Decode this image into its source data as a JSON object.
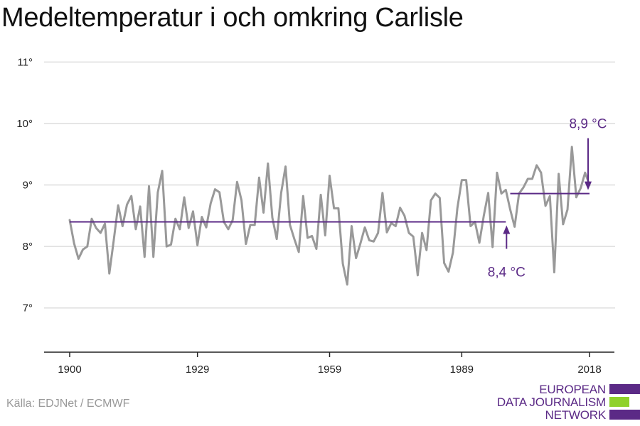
{
  "title": "Medeltemperatur i och omkring Carlisle",
  "source": "Källa: EDJNet / ECMWF",
  "logo": {
    "line1": "EUROPEAN",
    "line2": "DATA JOURNALISM",
    "line3": "NETWORK",
    "colors": [
      "#5b2a86",
      "#8fd12b",
      "#5b2a86"
    ]
  },
  "colors": {
    "series": "#999999",
    "average": "#5b2a86",
    "grid": "#dddddd",
    "axis": "#222222"
  },
  "chart_data": {
    "type": "line",
    "title": "Medeltemperatur i och omkring Carlisle",
    "xlabel": "",
    "ylabel": "",
    "xlim": [
      1900,
      2018
    ],
    "ylim": [
      6.5,
      11.2
    ],
    "x_ticks": [
      1900,
      1929,
      1959,
      1989,
      2018
    ],
    "x_tick_labels": [
      "1900",
      "1929",
      "1959",
      "1989",
      "2018"
    ],
    "y_ticks": [
      7,
      8,
      9,
      10,
      11
    ],
    "y_tick_labels": [
      "7°",
      "8°",
      "9°",
      "10°",
      "11°"
    ],
    "grid": true,
    "series": [
      {
        "x_start": 1900,
        "values": [
          8.43,
          8.05,
          7.8,
          7.95,
          8.0,
          8.45,
          8.3,
          8.22,
          8.37,
          7.56,
          8.1,
          8.67,
          8.33,
          8.68,
          8.82,
          8.28,
          8.65,
          7.83,
          8.98,
          7.83,
          8.88,
          9.23,
          8.0,
          8.03,
          8.45,
          8.28,
          8.8,
          8.3,
          8.57,
          8.02,
          8.48,
          8.31,
          8.7,
          8.93,
          8.88,
          8.4,
          8.28,
          8.43,
          9.05,
          8.75,
          8.04,
          8.35,
          8.35,
          9.12,
          8.55,
          9.35,
          8.47,
          8.12,
          8.87,
          9.3,
          8.35,
          8.12,
          7.91,
          8.82,
          8.14,
          8.17,
          7.96,
          8.84,
          8.18,
          9.15,
          8.62,
          8.62,
          7.72,
          7.38,
          8.33,
          7.81,
          8.05,
          8.31,
          8.1,
          8.08,
          8.22,
          8.87,
          8.23,
          8.38,
          8.33,
          8.63,
          8.5,
          8.22,
          8.16,
          7.53,
          8.22,
          7.94,
          8.75,
          8.86,
          8.79,
          7.73,
          7.59,
          7.9,
          8.62,
          9.08,
          9.08,
          8.33,
          8.4,
          8.06,
          8.5,
          8.87,
          7.99,
          9.2,
          8.86,
          8.92,
          8.6,
          8.32,
          8.86,
          8.96,
          9.1,
          9.1,
          9.32,
          9.2,
          8.66,
          8.82,
          7.58,
          9.18,
          8.36,
          8.6,
          9.62,
          8.8,
          8.95,
          9.2,
          9.0
        ]
      }
    ],
    "averages": [
      {
        "from": 1900,
        "to": 1999,
        "value": 8.4,
        "label": "8,4 °C"
      },
      {
        "from": 2000,
        "to": 2018,
        "value": 8.86,
        "label": "8,9 °C"
      }
    ]
  }
}
